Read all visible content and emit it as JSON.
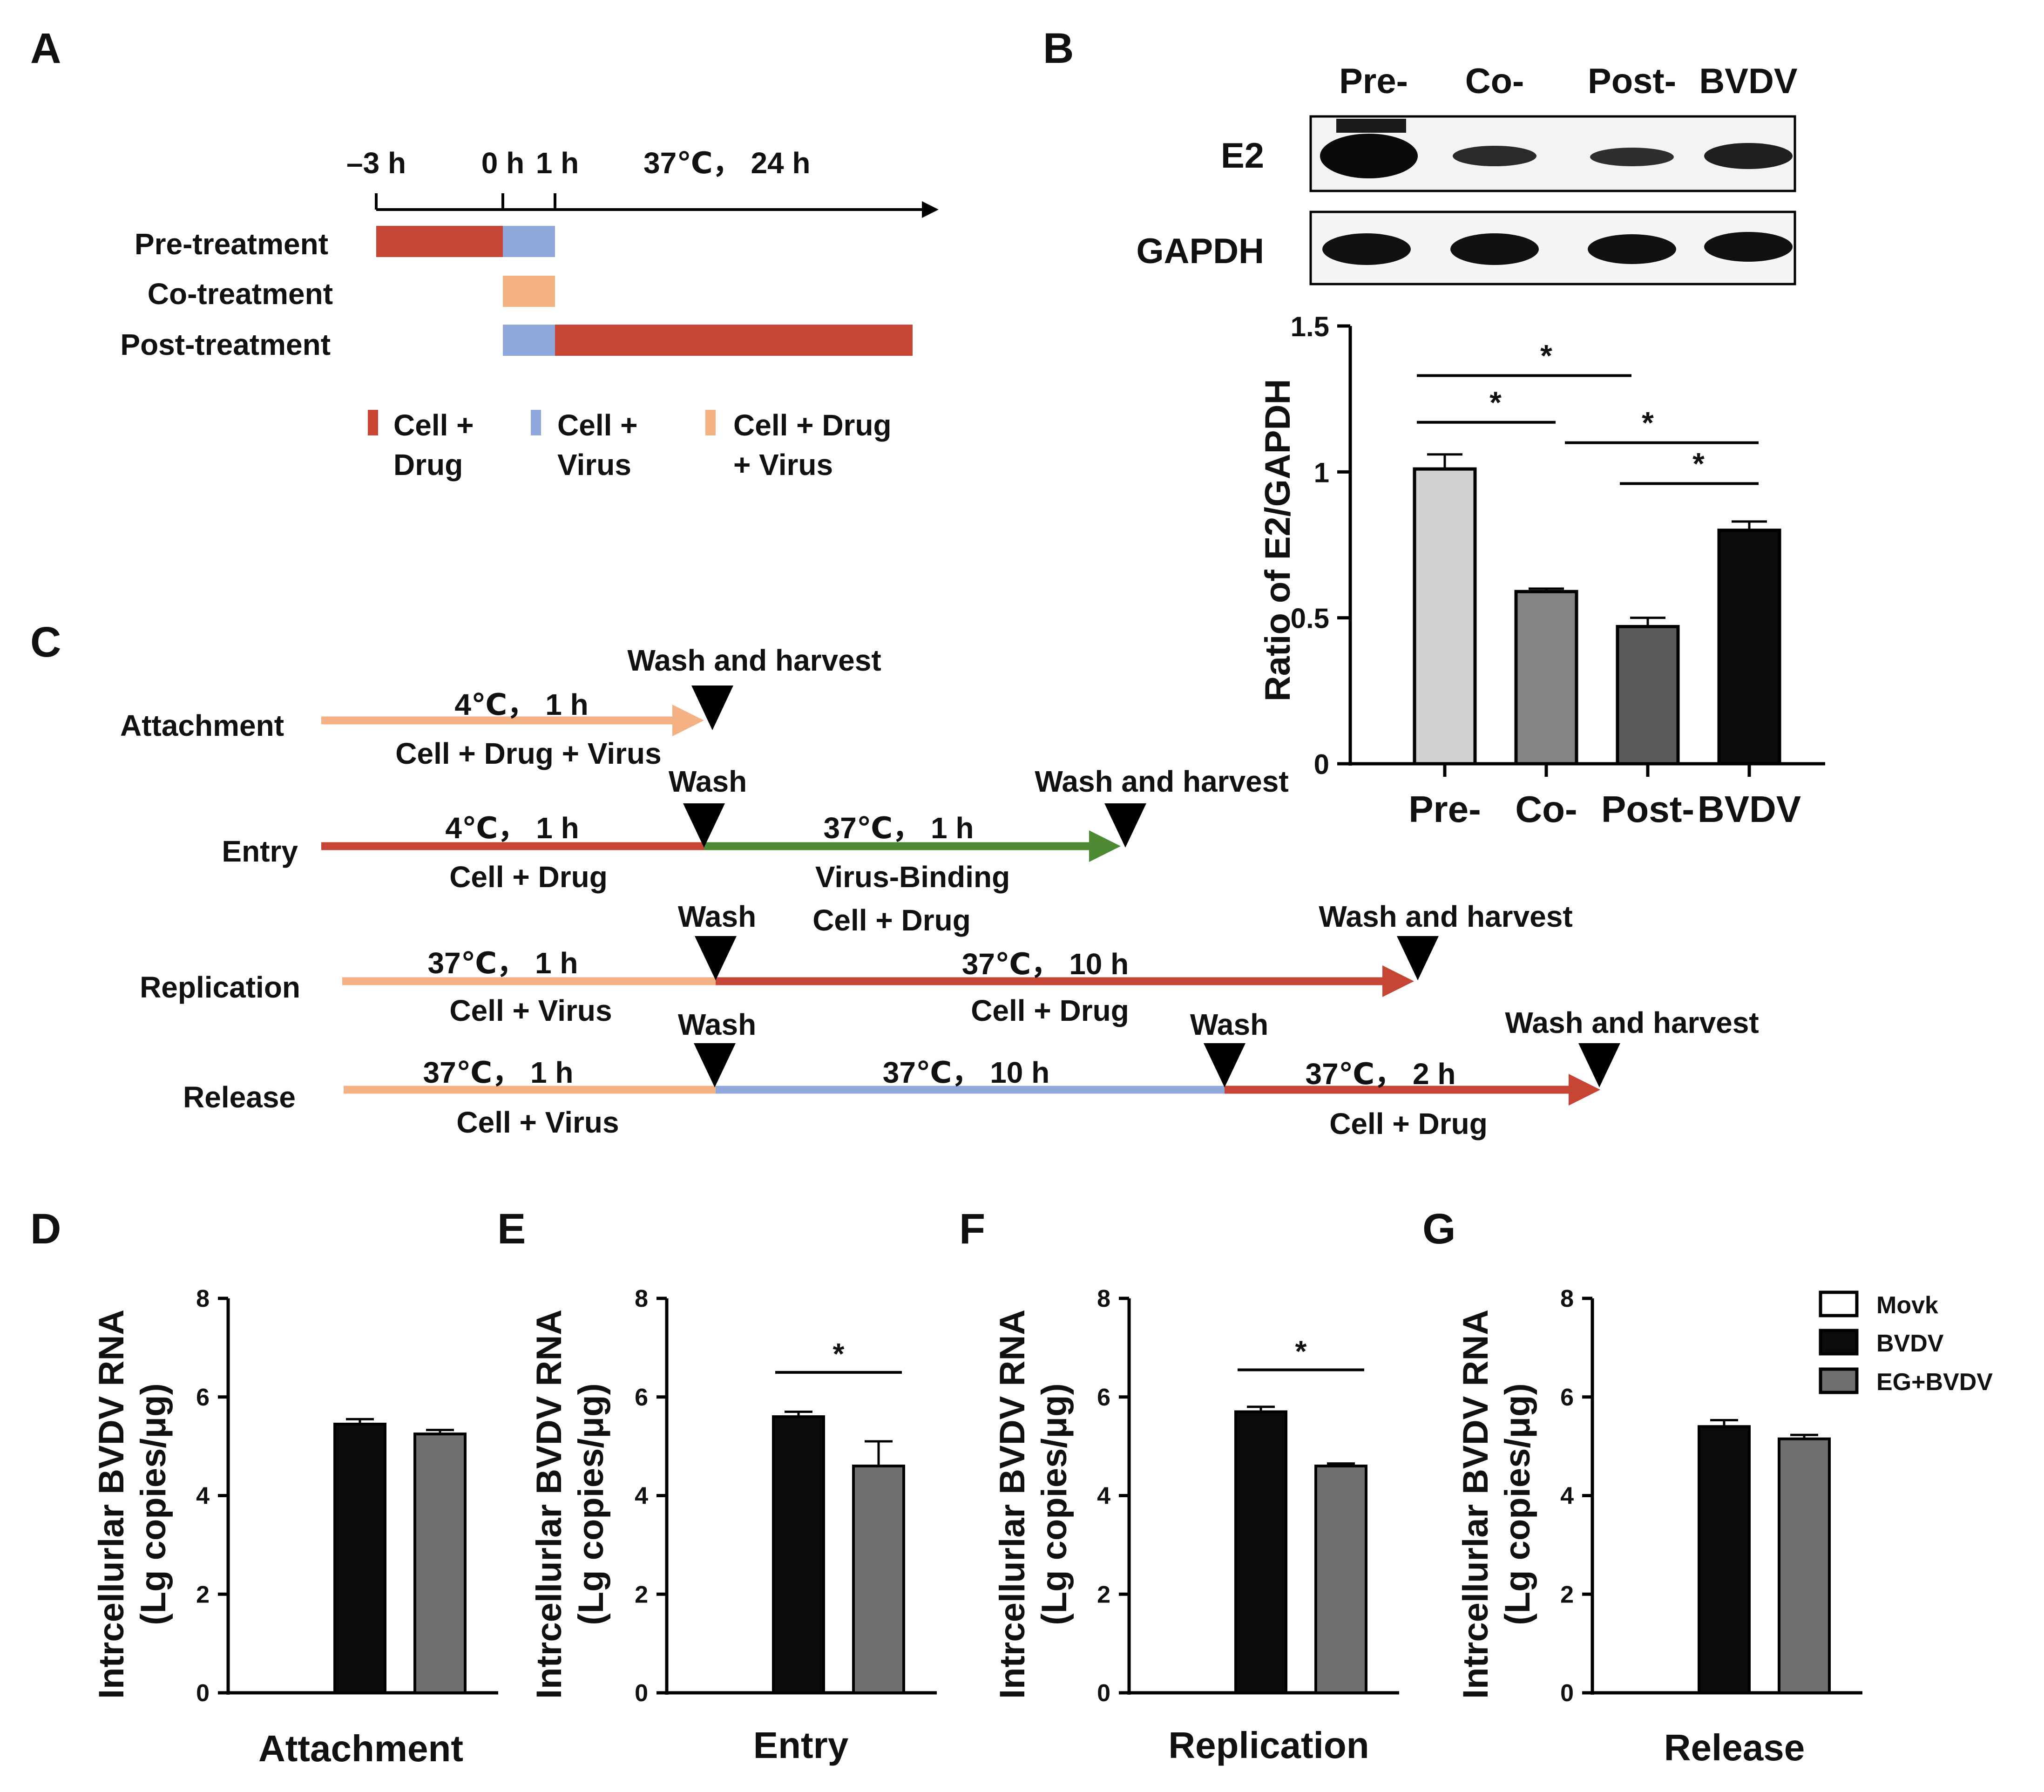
{
  "colors": {
    "red": "#c64535",
    "blue": "#8fa9dc",
    "orange": "#f4b183",
    "green": "#4e8a34",
    "black": "#0b0b0b",
    "light_gray": "#d1d1d1",
    "mid_gray": "#848484",
    "dark_gray": "#5b5b5b",
    "gray": "#707070"
  },
  "panel_labels": {
    "a": "A",
    "b": "B",
    "c": "C",
    "d": "D",
    "e": "E",
    "f": "F",
    "g": "G"
  },
  "panel_a": {
    "times": [
      "–3 h",
      "0 h",
      "1 h",
      "37℃， 24 h"
    ],
    "rows": [
      "Pre-treatment",
      "Co-treatment",
      "Post-treatment"
    ],
    "legend": [
      {
        "line1": "Cell +",
        "line2": "Drug",
        "color": "red"
      },
      {
        "line1": "Cell +",
        "line2": "Virus",
        "color": "blue"
      },
      {
        "line1": "Cell + Drug",
        "line2": "+ Virus",
        "color": "orange"
      }
    ]
  },
  "panel_b_blot": {
    "columns": [
      "Pre-",
      "Co-",
      "Post-",
      "BVDV"
    ],
    "rows": [
      "E2",
      "GAPDH"
    ]
  },
  "panel_c": {
    "rows": [
      {
        "name": "Attachment",
        "segments": [
          {
            "top": "4℃， 1 h",
            "bottom": "Cell + Drug + Virus",
            "color": "orange"
          }
        ],
        "markers": [
          "Wash and harvest"
        ]
      },
      {
        "name": "Entry",
        "segments": [
          {
            "top": "4℃， 1 h",
            "bottom": "Cell + Drug",
            "color": "red"
          },
          {
            "top": "37℃， 1 h",
            "bottom": "Virus-Binding",
            "bottom2": "Cell + Drug",
            "color": "green"
          }
        ],
        "markers": [
          "Wash",
          "Wash and harvest"
        ]
      },
      {
        "name": "Replication",
        "segments": [
          {
            "top": "37℃， 1 h",
            "bottom": "Cell + Virus",
            "color": "orange"
          },
          {
            "top": "37℃， 10 h",
            "bottom": "Cell + Drug",
            "color": "red"
          }
        ],
        "markers": [
          "Wash",
          "Wash and harvest"
        ]
      },
      {
        "name": "Release",
        "segments": [
          {
            "top": "37℃， 1 h",
            "bottom": "Cell + Virus",
            "color": "orange"
          },
          {
            "top": "37℃， 10 h",
            "bottom": "",
            "color": "blue"
          },
          {
            "top": "37℃， 2 h",
            "bottom": "Cell + Drug",
            "color": "red"
          }
        ],
        "markers": [
          "Wash",
          "Wash",
          "Wash and harvest"
        ]
      }
    ]
  },
  "chart_data": [
    {
      "panel": "B",
      "type": "bar",
      "categories": [
        "Pre-",
        "Co-",
        "Post-",
        "BVDV"
      ],
      "values": [
        1.01,
        0.59,
        0.47,
        0.8
      ],
      "errors": [
        0.05,
        0.01,
        0.03,
        0.03
      ],
      "colors": [
        "light_gray",
        "mid_gray",
        "dark_gray",
        "black"
      ],
      "ylabel": "Ratio of E2/GAPDH",
      "ylim": [
        0,
        1.5
      ],
      "yticks": [
        0,
        0.5,
        1,
        1.5
      ],
      "ytick_labels": [
        "0",
        "0.5",
        "1",
        "1.5"
      ],
      "significance": [
        {
          "from": 0,
          "to": 2,
          "label": "*",
          "y": 1.33
        },
        {
          "from": 0,
          "to": 1,
          "label": "*",
          "y": 1.17
        },
        {
          "from": 1,
          "to": 3,
          "label": "*",
          "y": 1.1
        },
        {
          "from": 2,
          "to": 3,
          "label": "*",
          "y": 0.96
        }
      ]
    },
    {
      "panel": "D",
      "type": "bar",
      "series": [
        {
          "name": "Movk",
          "value": null,
          "error": null
        },
        {
          "name": "BVDV",
          "value": 5.45,
          "error": 0.1
        },
        {
          "name": "EG+BVDV",
          "value": 5.25,
          "error": 0.08
        }
      ],
      "title": "",
      "xlabel": "Attachment",
      "ylabel": "Intrcellurlar BVDV RNA",
      "ylabel2": "(Lg copies/μg)",
      "ylim": [
        0,
        8
      ],
      "yticks": [
        0,
        2,
        4,
        6,
        8
      ],
      "significance": null
    },
    {
      "panel": "E",
      "type": "bar",
      "series": [
        {
          "name": "Movk",
          "value": null,
          "error": null
        },
        {
          "name": "BVDV",
          "value": 5.6,
          "error": 0.1
        },
        {
          "name": "EG+BVDV",
          "value": 4.6,
          "error": 0.5
        }
      ],
      "xlabel": "Entry",
      "ylabel": "Intrcellurlar BVDV RNA",
      "ylabel2": "(Lg copies/μg)",
      "ylim": [
        0,
        8
      ],
      "yticks": [
        0,
        2,
        4,
        6,
        8
      ],
      "significance": {
        "from": 1,
        "to": 2,
        "label": "*",
        "y": 6.5
      }
    },
    {
      "panel": "F",
      "type": "bar",
      "series": [
        {
          "name": "Movk",
          "value": null,
          "error": null
        },
        {
          "name": "BVDV",
          "value": 5.7,
          "error": 0.1
        },
        {
          "name": "EG+BVDV",
          "value": 4.6,
          "error": 0.05
        }
      ],
      "xlabel": "Replication",
      "ylabel": "Intrcellurlar BVDV RNA",
      "ylabel2": "(Lg copies/μg)",
      "ylim": [
        0,
        8
      ],
      "yticks": [
        0,
        2,
        4,
        6,
        8
      ],
      "significance": {
        "from": 1,
        "to": 2,
        "label": "*",
        "y": 6.55
      }
    },
    {
      "panel": "G",
      "type": "bar",
      "series": [
        {
          "name": "Movk",
          "value": null,
          "error": null
        },
        {
          "name": "BVDV",
          "value": 5.4,
          "error": 0.13
        },
        {
          "name": "EG+BVDV",
          "value": 5.15,
          "error": 0.08
        }
      ],
      "xlabel": "Release",
      "ylabel": "Intrcellurlar BVDV RNA",
      "ylabel2": "(Lg copies/μg)",
      "ylim": [
        0,
        8
      ],
      "yticks": [
        0,
        2,
        4,
        6,
        8
      ],
      "significance": null
    }
  ],
  "legend_dg": [
    {
      "label": "Movk",
      "fill": "#ffffff"
    },
    {
      "label": "BVDV",
      "fill": "#0b0b0b"
    },
    {
      "label": "EG+BVDV",
      "fill": "#707070"
    }
  ]
}
